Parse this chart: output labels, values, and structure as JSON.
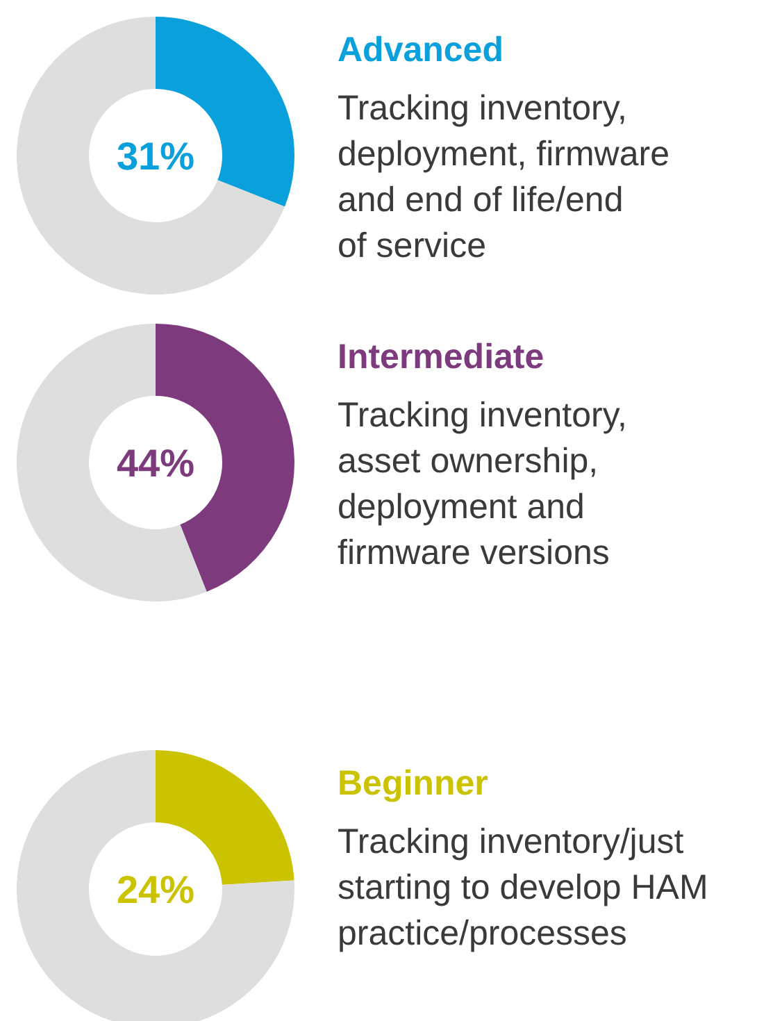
{
  "chart_data": [
    {
      "type": "donut",
      "title": "Advanced",
      "subtitle": "Tracking inventory,\ndeployment, firmware\nand end of life/end\nof service",
      "categories": [
        null,
        null
      ],
      "values": [
        31,
        69
      ],
      "colors": [
        "#0aa0dc",
        "#dedede"
      ],
      "annotations": [
        "31%"
      ]
    },
    {
      "type": "donut",
      "title": "Intermediate",
      "subtitle": "Tracking inventory,\nasset ownership,\ndeployment and\nfirmware versions",
      "categories": [
        null,
        null
      ],
      "values": [
        44,
        56
      ],
      "colors": [
        "#7d3b7e",
        "#dedede"
      ],
      "annotations": [
        "44%"
      ]
    },
    {
      "type": "donut",
      "title": "Beginner",
      "subtitle": "Tracking inventory/just\nstarting to develop HAM\npractice/processes",
      "categories": [
        null,
        null
      ],
      "values": [
        24,
        76
      ],
      "colors": [
        "#cbc300",
        "#dedede"
      ],
      "annotations": [
        "24%"
      ]
    }
  ]
}
